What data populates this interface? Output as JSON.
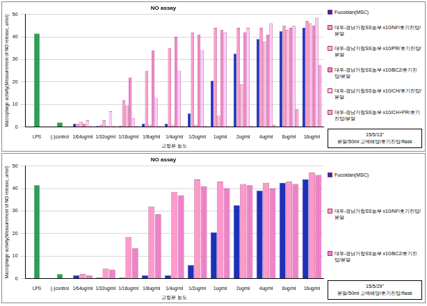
{
  "chart_data": [
    {
      "type": "bar",
      "title": "NO assay",
      "x_label": "고형분 농도",
      "y_label": "Macrophage activity(Measurement of NO release, umol)",
      "categories": [
        "LPS",
        "(-)control",
        "1/64ug/ml",
        "1/32ug/ml",
        "1/16ug/ml",
        "1/8ug/ml",
        "1/4ug/ml",
        "1/2ug/ml",
        "1ug/ml",
        "2ug/ml",
        "4ug/ml",
        "8ug/ml",
        "16ug/ml"
      ],
      "series": [
        {
          "color": "#2e9e55",
          "values": [
            41.5,
            2,
            null,
            null,
            null,
            null,
            null,
            null,
            null,
            null,
            null,
            null,
            null
          ]
        },
        {
          "name": "Fucoidan(MSC)",
          "color": "#1f2fb8",
          "values": [
            null,
            null,
            1.5,
            0.5,
            0.5,
            1.5,
            1.5,
            6,
            20.5,
            32.5,
            39,
            42.5,
            44
          ]
        },
        {
          "name": "대두-경남거창SS농부 x10/NF/호기진탕/분말",
          "color": "#ff99cc",
          "values": [
            null,
            null,
            1.5,
            1,
            12,
            25,
            35,
            42,
            44,
            44,
            44,
            45,
            47
          ]
        },
        {
          "name": "대두-경남거창SS농부 x10/PR/호기진탕/분말",
          "color": "#ffbbdd",
          "values": [
            null,
            null,
            2.5,
            3,
            9.5,
            1,
            1,
            1,
            5,
            19,
            38,
            43,
            46
          ]
        },
        {
          "name": "대두-경남거창SS농부 x10/BC2/호기진탕/분말",
          "color": "#ee82c8",
          "values": [
            null,
            null,
            1.5,
            0.5,
            22,
            34,
            40,
            41,
            43,
            42,
            41,
            44,
            45
          ]
        },
        {
          "name": "대두-경남거창SS농부 x10/CH/호기진탕/분말",
          "color": "#ffccff",
          "values": [
            null,
            null,
            3,
            7,
            4,
            13,
            25,
            34,
            42,
            44,
            46,
            45,
            48.5
          ]
        },
        {
          "name": "대두-경남거창SS농부 x10/CH+PR/호기진탕/분말",
          "color": "#f7a8d8",
          "values": [
            null,
            null,
            0.5,
            0.5,
            0.5,
            0.5,
            0.5,
            0.5,
            0.5,
            0.5,
            1,
            8,
            27.5
          ]
        }
      ],
      "ylim": [
        0,
        50
      ],
      "yticks": [
        0,
        10,
        20,
        30,
        40,
        50
      ],
      "grid": true,
      "legend": "right",
      "annotation": [
        "15/5/13\"",
        "분말/50ml 고액배양/호기진탕/flask"
      ]
    },
    {
      "type": "bar",
      "title": "NO assay",
      "x_label": "고형분 농도",
      "y_label": "Macrophage activity(Measurement of NO release, umol)",
      "categories": [
        "LPS",
        "(-)control",
        "1/64ug/ml",
        "1/32ug/ml",
        "1/16ug/ml",
        "1/8ug/ml",
        "1/4ug/ml",
        "1/2ug/ml",
        "1ug/ml",
        "2ug/ml",
        "4ug/ml",
        "8ug/ml",
        "16ug/ml"
      ],
      "series": [
        {
          "color": "#2e9e55",
          "values": [
            41.5,
            2,
            null,
            null,
            null,
            null,
            null,
            null,
            null,
            null,
            null,
            null,
            null
          ]
        },
        {
          "name": "Fucoidan(MSC)",
          "color": "#1f2fb8",
          "values": [
            null,
            null,
            1.5,
            0.5,
            0.5,
            1.5,
            1.5,
            6,
            20.5,
            32.5,
            39,
            42.5,
            44
          ]
        },
        {
          "name": "대두-경남거창SS농부 x10/NF/호기진탕/분말",
          "color": "#ff99cc",
          "values": [
            null,
            null,
            2,
            4.5,
            18.5,
            32,
            38.5,
            44,
            43,
            42,
            42.5,
            43,
            47
          ]
        },
        {
          "name": "대두-경남거창SS농부 x10/BC2/호기진탕/분말",
          "color": "#ee82c8",
          "values": [
            null,
            null,
            1.5,
            4,
            13.5,
            28.5,
            37,
            41,
            40,
            41.5,
            40,
            42,
            46
          ]
        }
      ],
      "ylim": [
        0,
        50
      ],
      "yticks": [
        0,
        10,
        20,
        30,
        40,
        50
      ],
      "grid": true,
      "legend": "right",
      "annotation": [
        "15/5/29\"",
        "분말/50ml 고액배양/호기진탕/flask"
      ]
    }
  ]
}
